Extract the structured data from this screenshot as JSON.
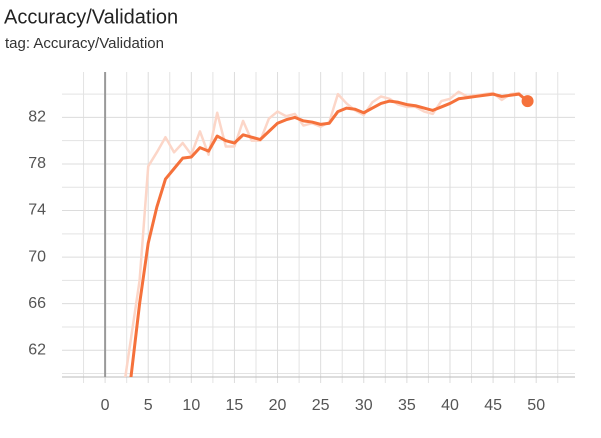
{
  "chart_data": {
    "type": "line",
    "title": "Accuracy/Validation",
    "subtitle": "tag: Accuracy/Validation",
    "x": [
      2,
      3,
      4,
      5,
      6,
      7,
      8,
      9,
      10,
      11,
      12,
      13,
      14,
      15,
      16,
      17,
      18,
      19,
      20,
      21,
      22,
      23,
      24,
      25,
      26,
      27,
      28,
      29,
      30,
      31,
      32,
      33,
      34,
      35,
      36,
      37,
      38,
      39,
      40,
      41,
      42,
      43,
      44,
      45,
      46,
      47,
      48,
      49
    ],
    "series": [
      {
        "color": "#fcd6c8",
        "width": 2.5,
        "values": [
          58,
          63,
          68,
          77.8,
          79,
          80.3,
          79,
          79.8,
          78.8,
          80.8,
          78.8,
          82.4,
          79.5,
          79.5,
          81.7,
          80,
          80,
          81.9,
          82.5,
          82.1,
          82.3,
          81.3,
          81.5,
          81.2,
          81.6,
          84,
          83.2,
          82.6,
          82.2,
          83.3,
          83.8,
          83.6,
          83.1,
          82.9,
          82.9,
          82.5,
          82.3,
          83.4,
          83.6,
          84.2,
          83.8,
          83.9,
          84,
          84.1,
          83.5,
          84,
          84.1,
          83.3
        ]
      },
      {
        "color": "#f5713b",
        "width": 3,
        "end_marker": true,
        "values": [
          55,
          59.7,
          66,
          71.2,
          74.3,
          76.7,
          77.6,
          78.5,
          78.6,
          79.4,
          79.1,
          80.4,
          80,
          79.8,
          80.5,
          80.3,
          80.1,
          80.8,
          81.5,
          81.8,
          82,
          81.7,
          81.6,
          81.4,
          81.5,
          82.5,
          82.8,
          82.7,
          82.4,
          82.8,
          83.2,
          83.4,
          83.3,
          83.1,
          83,
          82.8,
          82.6,
          82.9,
          83.2,
          83.6,
          83.7,
          83.8,
          83.9,
          84,
          83.8,
          83.9,
          84,
          83.4
        ]
      }
    ],
    "xlim": [
      -5,
      54.5
    ],
    "ylim": [
      59.7,
      85.9
    ],
    "xticks": [
      0,
      5,
      10,
      15,
      20,
      25,
      30,
      35,
      40,
      45,
      50
    ],
    "yticks": [
      62,
      66,
      70,
      74,
      78,
      82
    ],
    "minor_xticks": [
      -2.5,
      2.5,
      7.5,
      12.5,
      17.5,
      22.5,
      27.5,
      32.5,
      37.5,
      42.5,
      47.5,
      52.5
    ],
    "minor_yticks": [
      60,
      64,
      68,
      72,
      76,
      80,
      84
    ],
    "grid": true,
    "zero_line": true
  }
}
